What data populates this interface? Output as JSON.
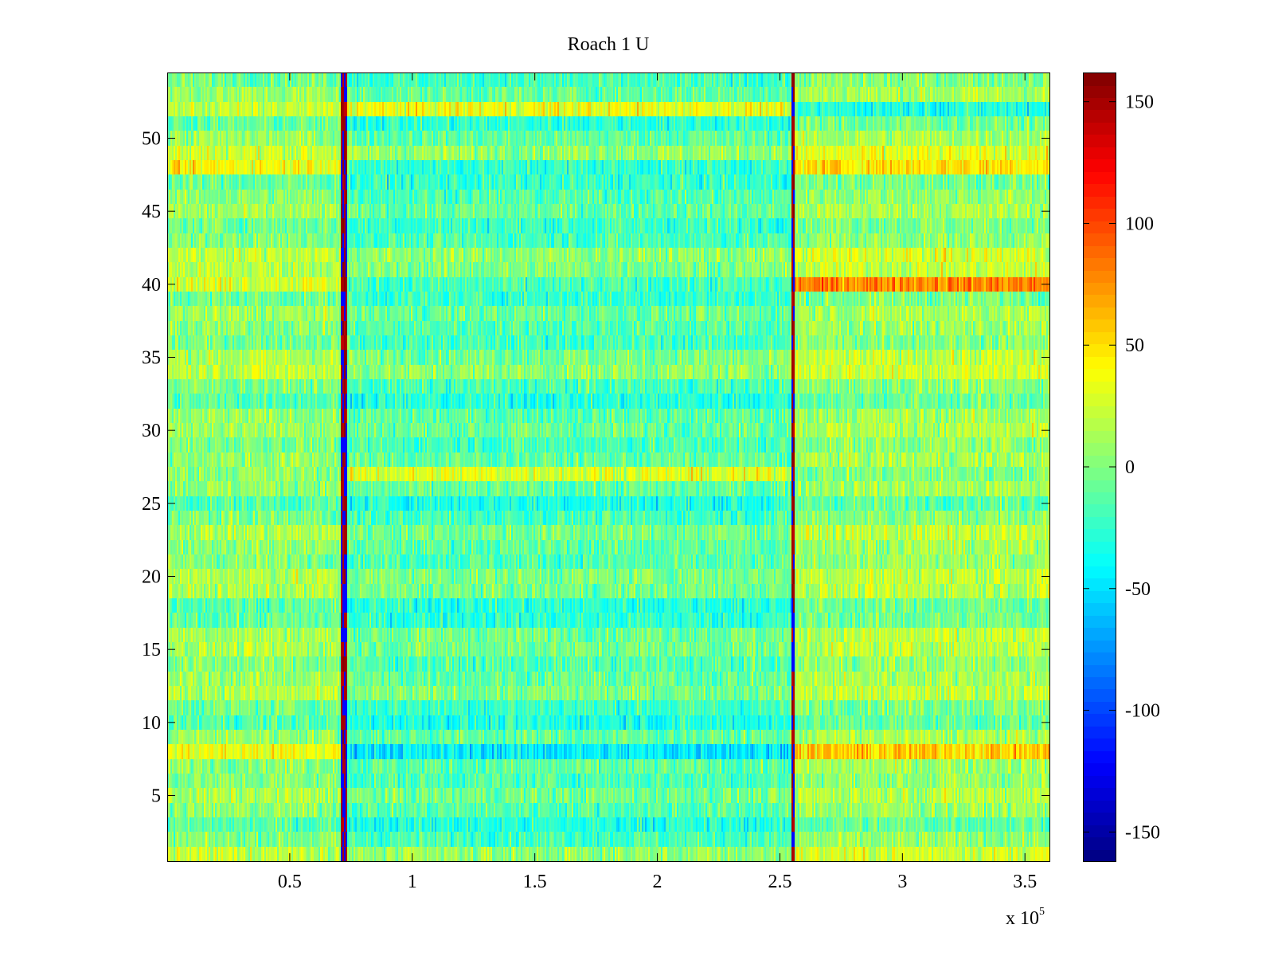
{
  "chart_data": {
    "type": "heatmap",
    "title": "Roach 1 U",
    "xlabel": "",
    "ylabel": "",
    "x_multiplier_text": "x 10",
    "x_multiplier_exponent": "5",
    "xlim": [
      0,
      360000
    ],
    "ylim": [
      0.5,
      54.5
    ],
    "x_ticks": [
      50000,
      100000,
      150000,
      200000,
      250000,
      300000,
      350000
    ],
    "x_tick_labels": [
      "0.5",
      "1",
      "1.5",
      "2",
      "2.5",
      "3",
      "3.5"
    ],
    "y_ticks": [
      5,
      10,
      15,
      20,
      25,
      30,
      35,
      40,
      45,
      50
    ],
    "y_tick_labels": [
      "5",
      "10",
      "15",
      "20",
      "25",
      "30",
      "35",
      "40",
      "45",
      "50"
    ],
    "rows": 54,
    "colormap": "jet",
    "color_range": [
      -162,
      162
    ],
    "colorbar_ticks": [
      -150,
      -100,
      -50,
      0,
      50,
      100,
      150
    ],
    "colorbar_tick_labels": [
      "-150",
      "-100",
      "-50",
      "0",
      "50",
      "100",
      "150"
    ],
    "event_boundaries": [
      72000,
      255000
    ],
    "notable_rows": {
      "row_8_segment_means": [
        35,
        -45,
        55
      ],
      "row_40_segment_means": [
        30,
        -20,
        80
      ],
      "row_48_segment_means": [
        40,
        -25,
        50
      ],
      "row_52_segment_means": [
        20,
        35,
        -30
      ],
      "row_27_segment_means": [
        5,
        30,
        0
      ]
    }
  }
}
